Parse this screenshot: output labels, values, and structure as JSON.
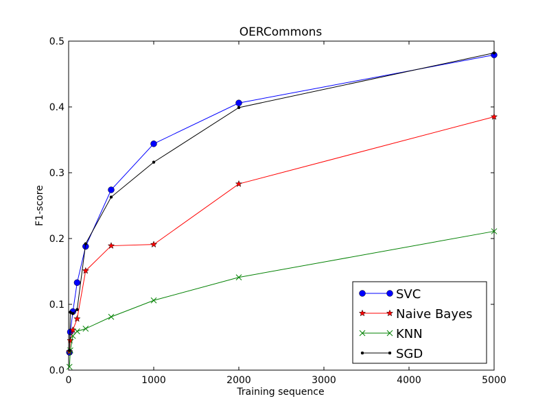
{
  "chart_data": {
    "type": "line",
    "title": "OERCommons",
    "xlabel": "Training sequence",
    "ylabel": "F1-score",
    "xlim": [
      0,
      5000
    ],
    "ylim": [
      0.0,
      0.5
    ],
    "xticks": [
      0,
      1000,
      2000,
      3000,
      4000,
      5000
    ],
    "yticks": [
      0.0,
      0.1,
      0.2,
      0.3,
      0.4,
      0.5
    ],
    "xtick_labels": [
      "0",
      "1000",
      "2000",
      "3000",
      "4000",
      "5000"
    ],
    "ytick_labels": [
      "0.0",
      "0.1",
      "0.2",
      "0.3",
      "0.4",
      "0.5"
    ],
    "grid": false,
    "legend_position": "lower-right",
    "series": [
      {
        "name": "SVC",
        "color": "#0000ff",
        "marker": "circle",
        "x": [
          10,
          20,
          50,
          100,
          200,
          500,
          1000,
          2000,
          5000
        ],
        "y": [
          0.027,
          0.058,
          0.089,
          0.133,
          0.188,
          0.274,
          0.344,
          0.406,
          0.479
        ]
      },
      {
        "name": "Naive Bayes",
        "color": "#ff0000",
        "marker": "star",
        "x": [
          10,
          20,
          50,
          100,
          200,
          500,
          1000,
          2000,
          5000
        ],
        "y": [
          0.028,
          0.045,
          0.061,
          0.078,
          0.151,
          0.189,
          0.191,
          0.283,
          0.385
        ]
      },
      {
        "name": "KNN",
        "color": "#008000",
        "marker": "x",
        "x": [
          10,
          20,
          50,
          100,
          200,
          500,
          1000,
          2000,
          5000
        ],
        "y": [
          0.005,
          0.03,
          0.052,
          0.059,
          0.063,
          0.081,
          0.106,
          0.141,
          0.211
        ]
      },
      {
        "name": "SGD",
        "color": "#000000",
        "marker": "dot",
        "x": [
          10,
          20,
          50,
          100,
          200,
          500,
          1000,
          2000,
          5000
        ],
        "y": [
          0.03,
          0.088,
          0.086,
          0.092,
          0.192,
          0.263,
          0.316,
          0.399,
          0.482
        ]
      }
    ]
  }
}
